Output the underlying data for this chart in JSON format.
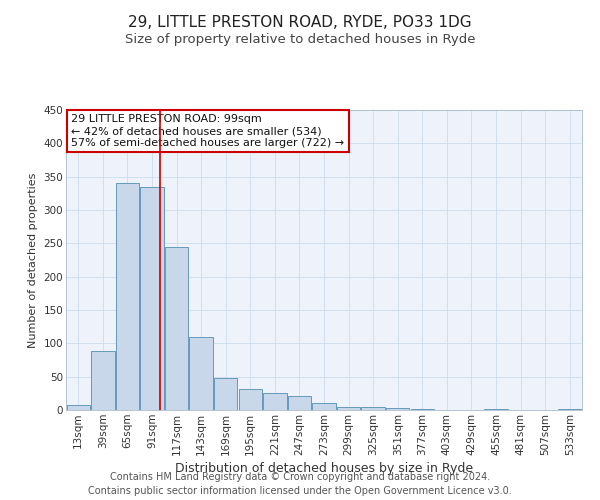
{
  "title": "29, LITTLE PRESTON ROAD, RYDE, PO33 1DG",
  "subtitle": "Size of property relative to detached houses in Ryde",
  "xlabel": "Distribution of detached houses by size in Ryde",
  "ylabel": "Number of detached properties",
  "bar_labels": [
    "13sqm",
    "39sqm",
    "65sqm",
    "91sqm",
    "117sqm",
    "143sqm",
    "169sqm",
    "195sqm",
    "221sqm",
    "247sqm",
    "273sqm",
    "299sqm",
    "325sqm",
    "351sqm",
    "377sqm",
    "403sqm",
    "429sqm",
    "455sqm",
    "481sqm",
    "507sqm",
    "533sqm"
  ],
  "bar_values": [
    7,
    88,
    341,
    334,
    245,
    110,
    48,
    32,
    25,
    21,
    10,
    5,
    4,
    3,
    2,
    0,
    0,
    2,
    0,
    0,
    2
  ],
  "bar_color": "#c8d8ea",
  "bar_edge_color": "#6699bb",
  "grid_color": "#ccddee",
  "bg_color": "#eef2fa",
  "ylim": [
    0,
    450
  ],
  "yticks": [
    0,
    50,
    100,
    150,
    200,
    250,
    300,
    350,
    400,
    450
  ],
  "annotation_title": "29 LITTLE PRESTON ROAD: 99sqm",
  "annotation_line1": "← 42% of detached houses are smaller (534)",
  "annotation_line2": "57% of semi-detached houses are larger (722) →",
  "annotation_box_color": "#ffffff",
  "annotation_box_edge": "#cc0000",
  "footer1": "Contains HM Land Registry data © Crown copyright and database right 2024.",
  "footer2": "Contains public sector information licensed under the Open Government Licence v3.0.",
  "title_fontsize": 11,
  "subtitle_fontsize": 9.5,
  "xlabel_fontsize": 9,
  "ylabel_fontsize": 8,
  "tick_fontsize": 7.5,
  "annot_fontsize": 8,
  "footer_fontsize": 7
}
